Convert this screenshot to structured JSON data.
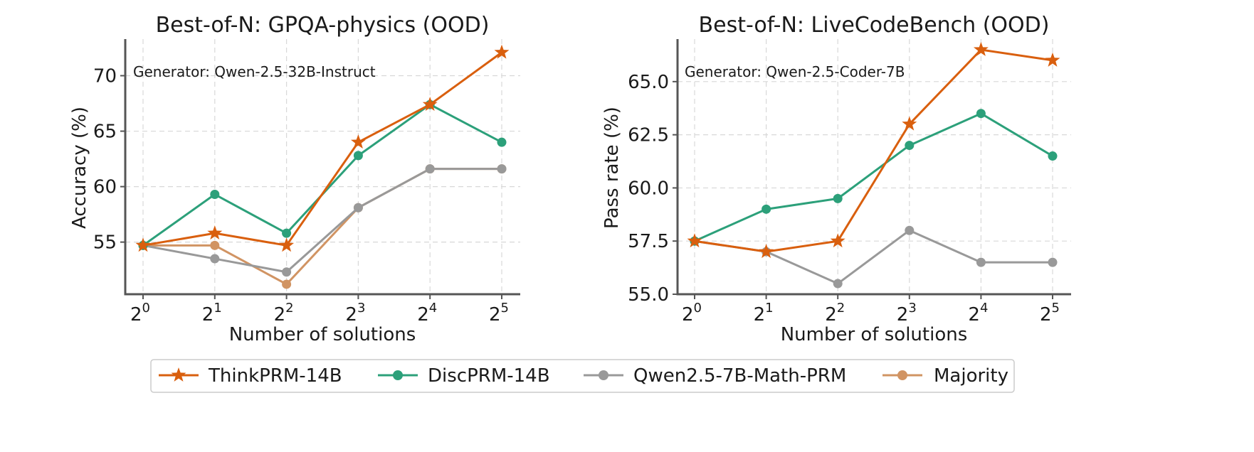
{
  "legend": {
    "items": [
      {
        "key": "think",
        "label": "ThinkPRM-14B",
        "color": "#d95f0e",
        "marker": "star"
      },
      {
        "key": "disc",
        "label": "DiscPRM-14B",
        "color": "#2ca07a",
        "marker": "circle"
      },
      {
        "key": "qwen",
        "label": "Qwen2.5-7B-Math-PRM",
        "color": "#999999",
        "marker": "circle"
      },
      {
        "key": "maj",
        "label": "Majority",
        "color": "#d19463",
        "marker": "circle"
      }
    ]
  },
  "chart_data": [
    {
      "type": "line",
      "title": "Best-of-N: GPQA-physics (OOD)",
      "annotation": "Generator: Qwen-2.5-32B-Instruct",
      "xlabel": "Number of solutions",
      "ylabel": "Accuracy (%)",
      "x_exponents": [
        "0",
        "1",
        "2",
        "3",
        "4",
        "5"
      ],
      "x_base": "2",
      "ylim": [
        50.3,
        73.3
      ],
      "yticks": [
        55,
        60,
        65,
        70
      ],
      "ytick_labels": [
        "55",
        "60",
        "65",
        "70"
      ],
      "grid": true,
      "series": [
        {
          "key": "maj",
          "name": "Majority",
          "values": [
            54.7,
            54.7,
            51.2,
            58.1,
            61.6,
            61.6
          ]
        },
        {
          "key": "qwen",
          "name": "Qwen2.5-7B-Math-PRM",
          "values": [
            54.7,
            53.5,
            52.3,
            58.1,
            61.6,
            61.6
          ]
        },
        {
          "key": "disc",
          "name": "DiscPRM-14B",
          "values": [
            54.7,
            59.3,
            55.8,
            62.8,
            67.4,
            64.0
          ]
        },
        {
          "key": "think",
          "name": "ThinkPRM-14B",
          "values": [
            54.7,
            55.8,
            54.7,
            64.0,
            67.4,
            72.1
          ]
        }
      ]
    },
    {
      "type": "line",
      "title": "Best-of-N: LiveCodeBench (OOD)",
      "annotation": "Generator: Qwen-2.5-Coder-7B",
      "xlabel": "Number of solutions",
      "ylabel": "Pass rate (%)",
      "x_exponents": [
        "0",
        "1",
        "2",
        "3",
        "4",
        "5"
      ],
      "x_base": "2",
      "ylim": [
        55.0,
        67.0
      ],
      "yticks": [
        55.0,
        57.5,
        60.0,
        62.5,
        65.0
      ],
      "ytick_labels": [
        "55.0",
        "57.5",
        "60.0",
        "62.5",
        "65.0"
      ],
      "grid": true,
      "series": [
        {
          "key": "qwen",
          "name": "Qwen2.5-7B-Math-PRM",
          "values": [
            57.5,
            57.0,
            55.5,
            58.0,
            56.5,
            56.5
          ]
        },
        {
          "key": "disc",
          "name": "DiscPRM-14B",
          "values": [
            57.5,
            59.0,
            59.5,
            62.0,
            63.5,
            61.5
          ]
        },
        {
          "key": "think",
          "name": "ThinkPRM-14B",
          "values": [
            57.5,
            57.0,
            57.5,
            63.0,
            66.5,
            66.0
          ]
        }
      ]
    }
  ]
}
